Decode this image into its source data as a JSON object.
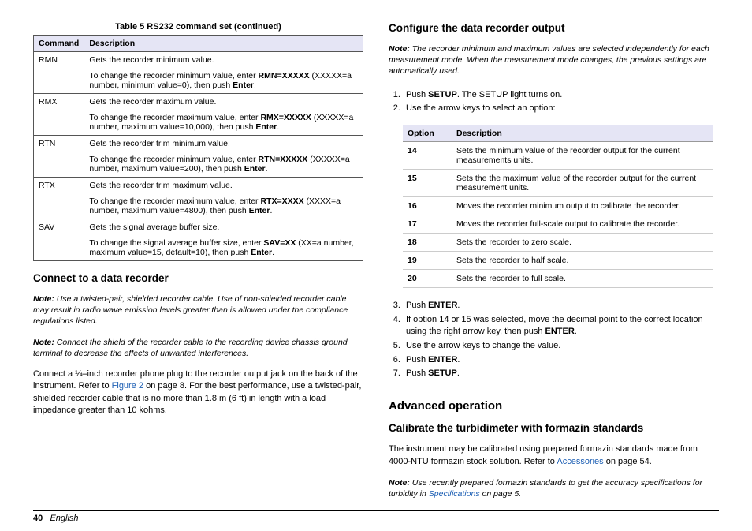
{
  "left": {
    "table_title": "Table 5  RS232 command set (continued)",
    "headers": [
      "Command",
      "Description"
    ],
    "rows": [
      {
        "cmd": "RMN",
        "line1": "Gets the recorder minimum value.",
        "line2_pre": "To change the recorder minimum value, enter ",
        "line2_bold": "RMN=XXXXX",
        "line2_post": " (XXXXX=a number, minimum value=0), then push ",
        "line2_bold2": "Enter",
        "line2_end": "."
      },
      {
        "cmd": "RMX",
        "line1": "Gets the recorder maximum value.",
        "line2_pre": "To change the recorder maximum value, enter ",
        "line2_bold": "RMX=XXXXX",
        "line2_post": " (XXXXX=a number, maximum value=10,000), then push ",
        "line2_bold2": "Enter",
        "line2_end": "."
      },
      {
        "cmd": "RTN",
        "line1": "Gets the recorder trim minimum value.",
        "line2_pre": "To change the recorder minimum value, enter ",
        "line2_bold": "RTN=XXXXX",
        "line2_post": " (XXXXX=a number, maximum value=200), then push ",
        "line2_bold2": "Enter",
        "line2_end": "."
      },
      {
        "cmd": "RTX",
        "line1": "Gets the recorder trim maximum value.",
        "line2_pre": "To change the recorder maximum value, enter ",
        "line2_bold": "RTX=XXXX",
        "line2_post": " (XXXX=a number, maximum value=4800), then push ",
        "line2_bold2": "Enter",
        "line2_end": "."
      },
      {
        "cmd": "SAV",
        "line1": "Gets the signal average buffer size.",
        "line2_pre": "To change the signal average buffer size, enter ",
        "line2_bold": "SAV=XX",
        "line2_post": " (XX=a number, maximum value=15, default=10), then push ",
        "line2_bold2": "Enter",
        "line2_end": "."
      }
    ],
    "h_connect": "Connect to a data recorder",
    "note1": "Use a twisted-pair, shielded recorder cable. Use of non-shielded recorder cable may result in radio wave emission levels greater than is allowed under the compliance regulations listed.",
    "note2": "Connect the shield of the recorder cable to the recording device chassis ground terminal to decrease the effects of unwanted interferences.",
    "para_pre": "Connect a ",
    "para_frac": "¼",
    "para_post1": "–inch recorder phone plug to the recorder output jack on the back of the instrument. Refer to ",
    "para_link": "Figure 2",
    "para_post2": " on page 8. For the best performance, use a twisted-pair, shielded recorder cable that is no more than 1.8 m (6 ft) in length with a load impedance greater than 10 kohms."
  },
  "right": {
    "h_config": "Configure the data recorder output",
    "note_top": "The recorder minimum and maximum values are selected independently for each measurement mode. When the measurement mode changes, the previous settings are automatically used.",
    "step1_pre": "Push ",
    "step1_bold": "SETUP",
    "step1_post": ". The SETUP light turns on.",
    "step2": "Use the arrow keys to select an option:",
    "opt_headers": [
      "Option",
      "Description"
    ],
    "options": [
      {
        "n": "14",
        "d": "Sets the minimum value of the recorder output for the current measurements units."
      },
      {
        "n": "15",
        "d": "Sets the the maximum value of the recorder output for the current measurement units."
      },
      {
        "n": "16",
        "d": "Moves the recorder minimum output to calibrate the recorder."
      },
      {
        "n": "17",
        "d": "Moves the recorder full-scale output to calibrate the recorder."
      },
      {
        "n": "18",
        "d": "Sets the recorder to zero scale."
      },
      {
        "n": "19",
        "d": "Sets the recorder to half scale."
      },
      {
        "n": "20",
        "d": "Sets the recorder to full scale."
      }
    ],
    "step3_pre": "Push ",
    "step3_bold": "ENTER",
    "step3_post": ".",
    "step4_pre": "If option 14 or 15 was selected, move the decimal point to the correct location using the right arrow key, then push ",
    "step4_bold": "ENTER",
    "step4_post": ".",
    "step5": "Use the arrow keys to change the value.",
    "step6_pre": "Push ",
    "step6_bold": "ENTER",
    "step6_post": ".",
    "step7_pre": "Push ",
    "step7_bold": "SETUP",
    "step7_post": ".",
    "h_adv": "Advanced operation",
    "h_cal": "Calibrate the turbidimeter with formazin standards",
    "cal_para_pre": "The instrument may be calibrated using prepared formazin standards made from 4000-NTU formazin stock solution. Refer to ",
    "cal_link": "Accessories",
    "cal_para_post": " on page 54.",
    "cal_note_pre": "Use recently prepared formazin standards to get the accuracy specifications for turbidity in ",
    "cal_note_link": "Specifications",
    "cal_note_post": " on page 5."
  },
  "footer": {
    "page": "40",
    "lang": "English"
  }
}
